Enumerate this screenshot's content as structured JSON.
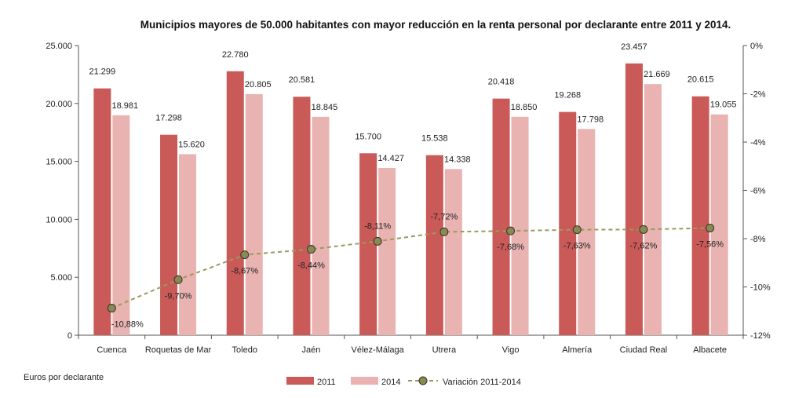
{
  "chart_data": {
    "type": "bar",
    "title": "Municipios mayores de 50.000 habitantes  con mayor reducción en la renta personal por declarante entre 2011 y 2014.",
    "y_note": "Euros por declarante",
    "categories": [
      "Cuenca",
      "Roquetas de Mar",
      "Toledo",
      "Jaén",
      "Vélez-Málaga",
      "Utrera",
      "Vigo",
      "Almería",
      "Ciudad Real",
      "Albacete"
    ],
    "series": [
      {
        "name": "2011",
        "color": "#c95a58",
        "values": [
          21299,
          17298,
          22780,
          20581,
          15700,
          15538,
          20418,
          19268,
          23457,
          20615
        ],
        "labels": [
          "21.299",
          "17.298",
          "22.780",
          "20.581",
          "15.700",
          "15.538",
          "20.418",
          "19.268",
          "23.457",
          "20.615"
        ]
      },
      {
        "name": "2014",
        "color": "#e8b3b1",
        "values": [
          18981,
          15620,
          20805,
          18845,
          14427,
          14338,
          18850,
          17798,
          21669,
          19055
        ],
        "labels": [
          "18.981",
          "15.620",
          "20.805",
          "18.845",
          "14.427",
          "14.338",
          "18.850",
          "17.798",
          "21.669",
          "19.055"
        ]
      },
      {
        "name": "Variación 2011-2014",
        "type": "line",
        "axis": "right",
        "color": "#9b9a5c",
        "marker_color": "#8a8a50",
        "values": [
          -10.88,
          -9.7,
          -8.67,
          -8.44,
          -8.11,
          -7.72,
          -7.68,
          -7.63,
          -7.62,
          -7.56
        ],
        "labels": [
          "-10,88%",
          "-9,70%",
          "-8,67%",
          "-8,44%",
          "-8,11%",
          "-7,72%",
          "-7,68%",
          "-7,63%",
          "-7,62%",
          "-7,56%"
        ]
      }
    ],
    "y_left": {
      "min": 0,
      "max": 25000,
      "ticks": [
        0,
        5000,
        10000,
        15000,
        20000,
        25000
      ],
      "tick_labels": [
        "0",
        "5.000",
        "10.000",
        "15.000",
        "20.000",
        "25.000"
      ]
    },
    "y_right": {
      "min": -12,
      "max": 0,
      "ticks": [
        0,
        -2,
        -4,
        -6,
        -8,
        -10,
        -12
      ],
      "tick_labels": [
        "0%",
        "-2%",
        "-4%",
        "-6%",
        "-8%",
        "-10%",
        "-12%"
      ]
    },
    "grid": false,
    "legend_position": "bottom"
  }
}
